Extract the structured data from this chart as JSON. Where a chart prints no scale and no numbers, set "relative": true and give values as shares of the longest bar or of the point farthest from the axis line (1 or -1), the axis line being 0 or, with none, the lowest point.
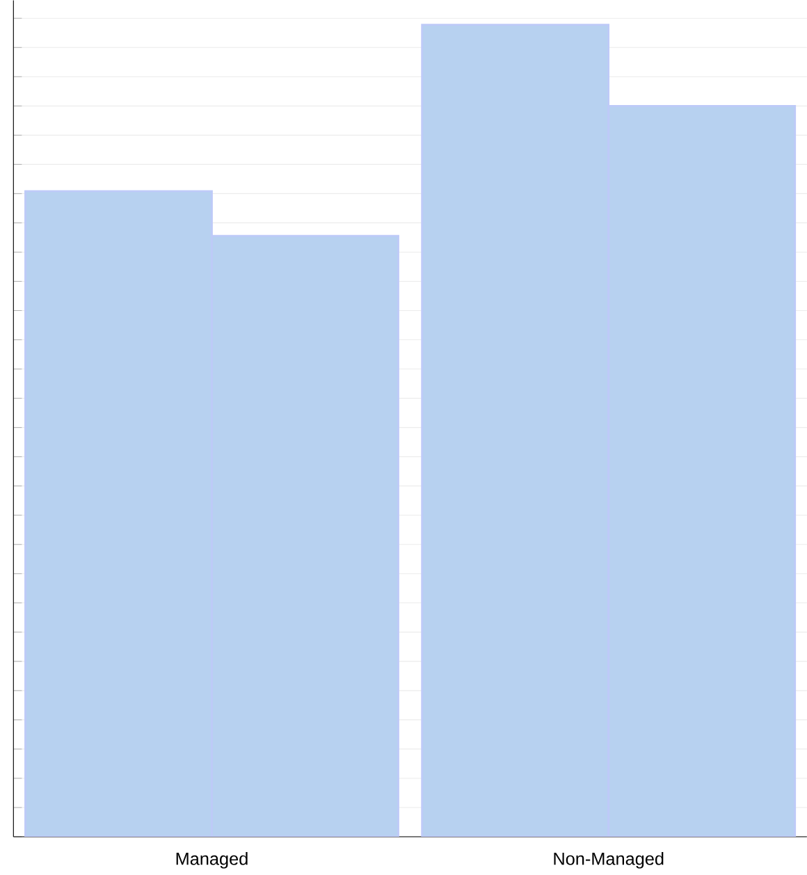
{
  "chart_data": {
    "type": "bar",
    "relative": true,
    "categories": [
      "Managed",
      "Non-Managed"
    ],
    "series": [
      {
        "color": "#b7d1f0",
        "values": [
          0.795,
          1
        ]
      },
      {
        "color": "#b7d1f0",
        "values": [
          0.74,
          0.9
        ]
      }
    ],
    "grid": "y"
  }
}
